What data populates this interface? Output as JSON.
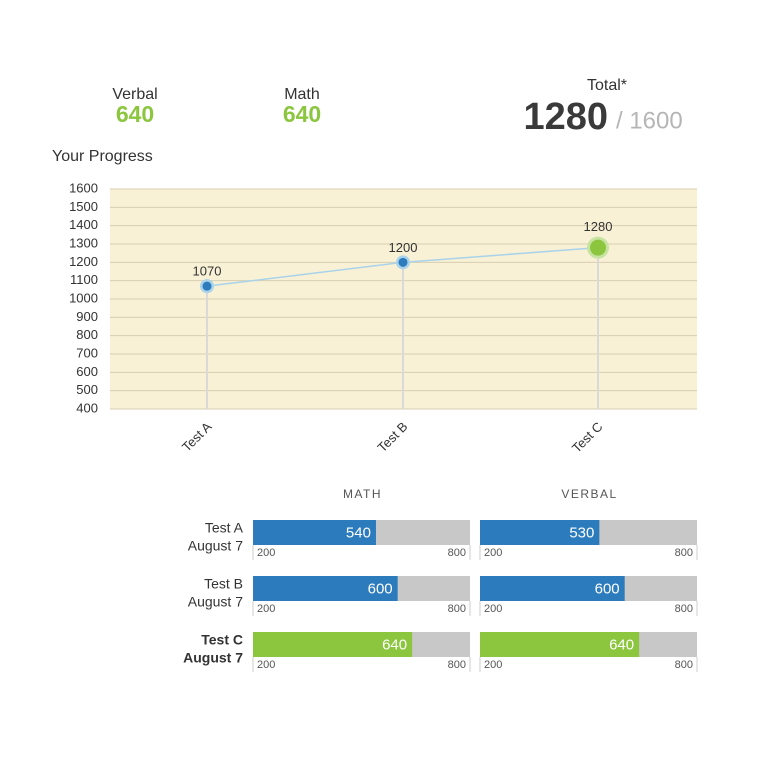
{
  "summary": {
    "verbal": {
      "label": "Verbal",
      "value": "640"
    },
    "math": {
      "label": "Math",
      "value": "640"
    },
    "total": {
      "label": "Total*",
      "value": "1280",
      "max": "/ 1600"
    }
  },
  "chart_data": [
    {
      "type": "line",
      "title": "Your Progress",
      "categories": [
        "Test A",
        "Test B",
        "Test C"
      ],
      "values": [
        1070,
        1200,
        1280
      ],
      "ylim": [
        400,
        1600
      ],
      "yticks": [
        400,
        500,
        600,
        700,
        800,
        900,
        1000,
        1100,
        1200,
        1300,
        1400,
        1500,
        1600
      ],
      "grid": true,
      "background": "#f8f1d6",
      "line_color": "#a9d3ea",
      "colors": [
        "#2b7bbd",
        "#2b7bbd",
        "#8cc63f"
      ]
    },
    {
      "type": "bar_panels",
      "categories": [
        "Test A",
        "Test B",
        "Test C"
      ],
      "sublabels": [
        "August 7",
        "August 7",
        "August 7"
      ],
      "colors": [
        "#2b7bbd",
        "#2b7bbd",
        "#8cc63f"
      ],
      "track_color": "#c8c8c8",
      "xlim": [
        200,
        800
      ],
      "xticks": [
        200,
        800
      ],
      "series": [
        {
          "name": "MATH",
          "values": [
            540,
            600,
            640
          ]
        },
        {
          "name": "VERBAL",
          "values": [
            530,
            600,
            640
          ]
        }
      ]
    }
  ]
}
